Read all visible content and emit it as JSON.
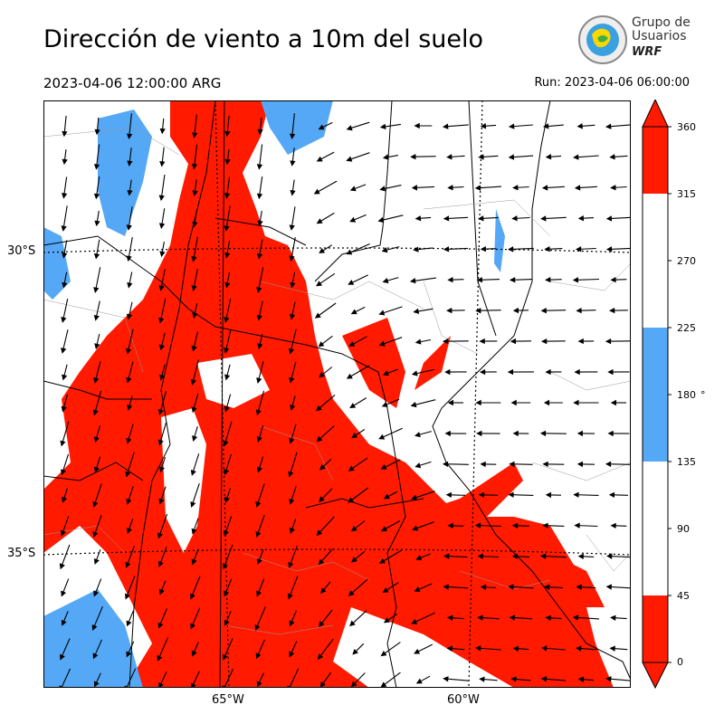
{
  "header": {
    "title": "Dirección de viento a 10m del suelo",
    "valid_time": "2023-04-06 12:00:00 ARG",
    "run_time": "Run: 2023-04-06 06:00:00"
  },
  "logo": {
    "line1": "Grupo de",
    "line2": "Usuarios",
    "line3": "WRF"
  },
  "map": {
    "lat_labels": [
      "30°S",
      "35°S"
    ],
    "lon_labels": [
      "65°W",
      "60°W"
    ]
  },
  "colorbar": {
    "ticks": [
      "360",
      "315",
      "270",
      "225",
      "180",
      "135",
      "90",
      "45",
      "0"
    ],
    "unit": "°",
    "colors": {
      "red": "#ff1a00",
      "white": "#ffffff",
      "blue": "#55a8f5"
    }
  }
}
